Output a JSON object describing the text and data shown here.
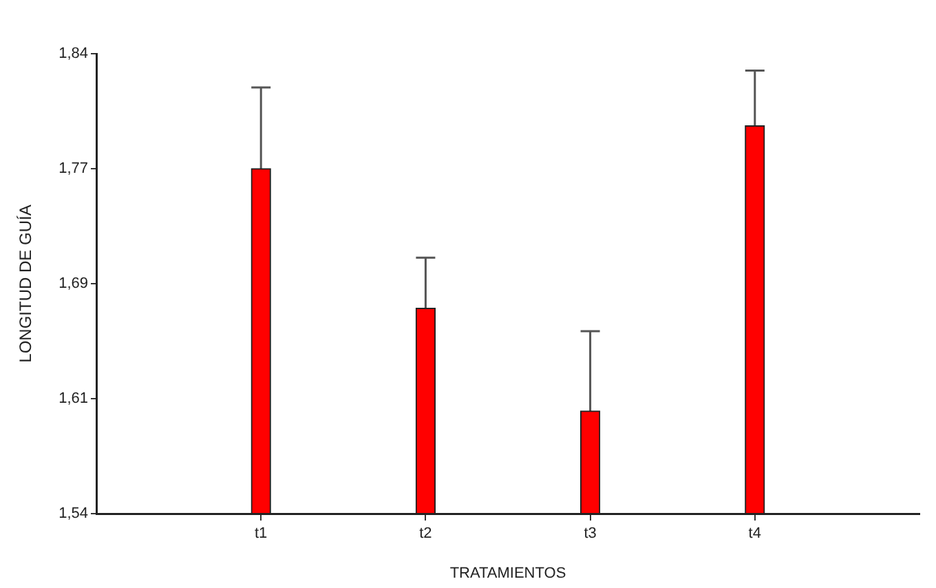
{
  "chart_data": {
    "type": "bar",
    "xlabel": "TRATAMIENTOS",
    "ylabel": "LONGITUD DE GUÍA",
    "categories": [
      "t1",
      "t2",
      "t3",
      "t4"
    ],
    "values": [
      1.765,
      1.674,
      1.607,
      1.793
    ],
    "errors": [
      0.053,
      0.033,
      0.052,
      0.036
    ],
    "color": "#ff0000",
    "ylim": [
      1.54,
      1.84
    ],
    "yticks": [
      {
        "value": 1.54,
        "label": "1,54"
      },
      {
        "value": 1.615,
        "label": "1,61"
      },
      {
        "value": 1.69,
        "label": "1,69"
      },
      {
        "value": 1.765,
        "label": "1,77"
      },
      {
        "value": 1.84,
        "label": "1,84"
      }
    ],
    "grid": false,
    "legend": false
  }
}
